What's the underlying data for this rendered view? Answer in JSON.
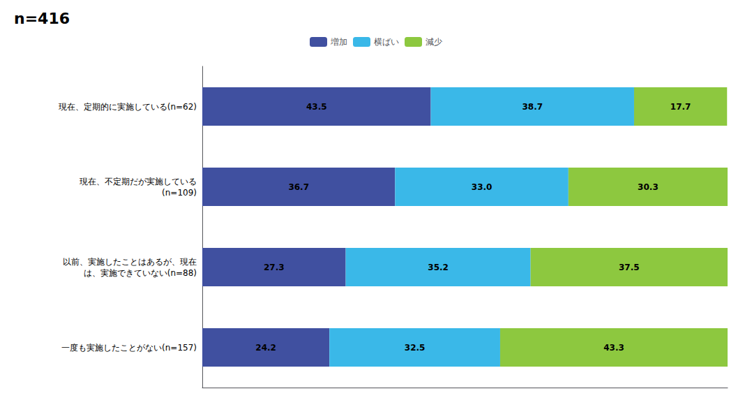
{
  "chart_data": {
    "type": "bar",
    "title": "n=416",
    "orientation": "horizontal",
    "stacked": true,
    "categories": [
      "現在、定期的に実施している(n=62)",
      "現在、不定期だが実施している\n(n=109)",
      "以前、実施したことはあるが、現在\nは、実施できていない(n=88)",
      "一度も実施したことがない(n=157)"
    ],
    "series": [
      {
        "name": "増加",
        "color": "#4050a0",
        "values": [
          43.5,
          36.7,
          27.3,
          24.2
        ]
      },
      {
        "name": "横ばい",
        "color": "#3ab8e8",
        "values": [
          38.7,
          33.0,
          35.2,
          32.5
        ],
        "value_labels": [
          "38.7",
          "33.0",
          "35.2",
          "32.5"
        ]
      },
      {
        "name": "減少",
        "color": "#8dc83f",
        "values": [
          17.7,
          30.3,
          37.5,
          43.3
        ]
      }
    ],
    "xlim": [
      0,
      100
    ],
    "data_labels": true,
    "tick_labels": "y",
    "grid": false,
    "legend": "top"
  }
}
